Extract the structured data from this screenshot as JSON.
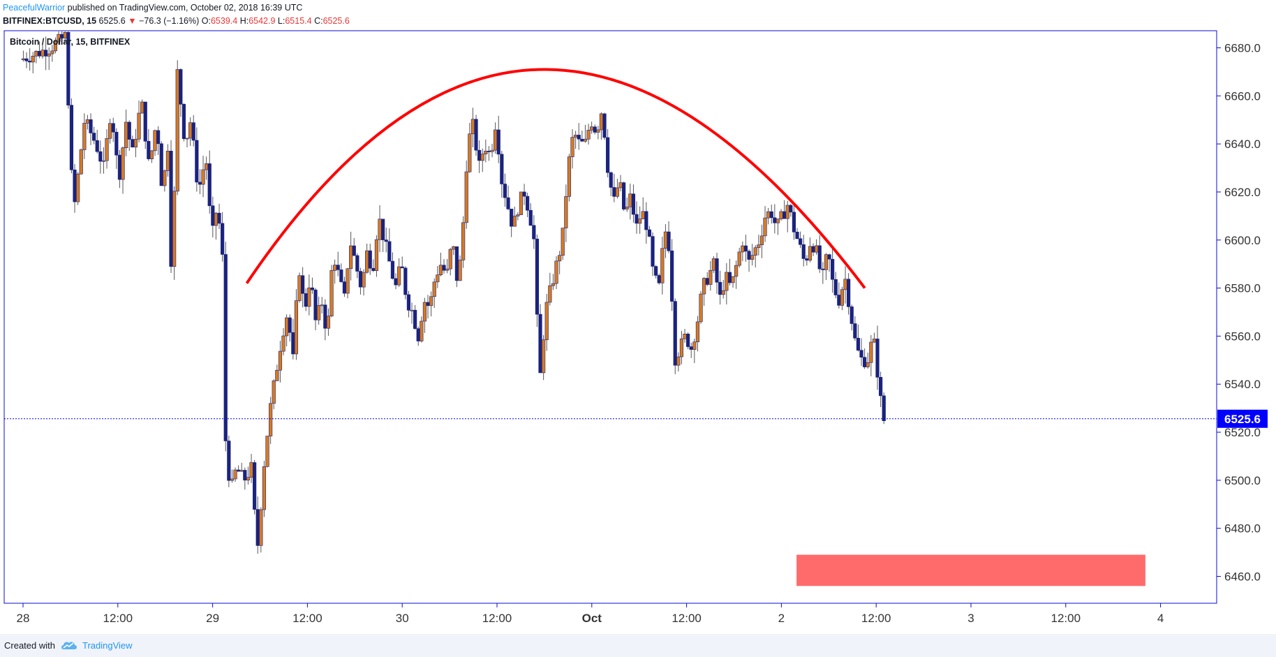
{
  "header": {
    "author": "PeacefulWarrior",
    "published_text": "published on TradingView.com, October 02, 2018 16:39 UTC",
    "symbol": "BITFINEX:BTCUSD, 15",
    "last": "6525.6",
    "arrow": "▼",
    "change": "−76.3 (−1.16%)",
    "o_label": "O:",
    "o_value": "6539.4",
    "h_label": "H:",
    "h_value": "6542.9",
    "l_label": "L:",
    "l_value": "6515.4",
    "c_label": "C:",
    "c_value": "6525.6"
  },
  "chart_data": {
    "type": "candlestick",
    "title": "Bitcoin / Dollar, 15, BITFINEX",
    "x_ticks": [
      "28",
      "12:00",
      "29",
      "12:00",
      "30",
      "12:00",
      "Oct",
      "12:00",
      "2",
      "12:00",
      "3",
      "12:00",
      "4"
    ],
    "y_ticks": [
      "6680.0",
      "6660.0",
      "6640.0",
      "6620.0",
      "6600.0",
      "6580.0",
      "6560.0",
      "6540.0",
      "6520.0",
      "6500.0",
      "6480.0",
      "6460.0"
    ],
    "ylim": [
      6450,
      6686
    ],
    "last_price": 6525.6,
    "last_price_label": "6525.6",
    "price_path": [
      [
        0.2,
        6675
      ],
      [
        1.8,
        6680
      ],
      [
        2.6,
        6685
      ],
      [
        3.0,
        6610
      ],
      [
        3.6,
        6650
      ],
      [
        4.2,
        6640
      ],
      [
        4.6,
        6630
      ],
      [
        5.0,
        6655
      ],
      [
        5.4,
        6625
      ],
      [
        5.8,
        6650
      ],
      [
        6.1,
        6635
      ],
      [
        6.6,
        6658
      ],
      [
        7.0,
        6630
      ],
      [
        7.4,
        6650
      ],
      [
        7.7,
        6620
      ],
      [
        8.0,
        6640
      ],
      [
        8.2,
        6580
      ],
      [
        8.5,
        6670
      ],
      [
        8.9,
        6640
      ],
      [
        9.2,
        6650
      ],
      [
        9.6,
        6620
      ],
      [
        10.0,
        6635
      ],
      [
        10.3,
        6600
      ],
      [
        10.6,
        6615
      ],
      [
        10.9,
        6590
      ],
      [
        11.0,
        6520
      ],
      [
        11.3,
        6495
      ],
      [
        11.6,
        6505
      ],
      [
        12.0,
        6500
      ],
      [
        12.4,
        6505
      ],
      [
        12.7,
        6470
      ],
      [
        12.9,
        6490
      ],
      [
        13.1,
        6510
      ],
      [
        13.4,
        6530
      ],
      [
        13.7,
        6545
      ],
      [
        14.0,
        6560
      ],
      [
        14.3,
        6570
      ],
      [
        14.6,
        6550
      ],
      [
        14.9,
        6590
      ],
      [
        15.2,
        6570
      ],
      [
        15.5,
        6585
      ],
      [
        15.8,
        6565
      ],
      [
        16.1,
        6575
      ],
      [
        16.4,
        6560
      ],
      [
        16.7,
        6595
      ],
      [
        17.0,
        6585
      ],
      [
        17.3,
        6575
      ],
      [
        17.6,
        6600
      ],
      [
        17.9,
        6590
      ],
      [
        18.2,
        6580
      ],
      [
        18.5,
        6595
      ],
      [
        18.8,
        6588
      ],
      [
        19.1,
        6610
      ],
      [
        19.4,
        6600
      ],
      [
        19.7,
        6590
      ],
      [
        20.0,
        6580
      ],
      [
        20.3,
        6590
      ],
      [
        20.6,
        6575
      ],
      [
        20.9,
        6570
      ],
      [
        21.2,
        6560
      ],
      [
        21.5,
        6575
      ],
      [
        21.8,
        6572
      ],
      [
        22.1,
        6585
      ],
      [
        22.4,
        6590
      ],
      [
        22.7,
        6585
      ],
      [
        23.0,
        6600
      ],
      [
        23.3,
        6580
      ],
      [
        23.6,
        6610
      ],
      [
        23.8,
        6640
      ],
      [
        24.1,
        6648
      ],
      [
        24.4,
        6630
      ],
      [
        24.7,
        6640
      ],
      [
        25.0,
        6635
      ],
      [
        25.3,
        6650
      ],
      [
        25.6,
        6625
      ],
      [
        25.9,
        6615
      ],
      [
        26.2,
        6605
      ],
      [
        26.5,
        6615
      ],
      [
        26.8,
        6620
      ],
      [
        27.1,
        6610
      ],
      [
        27.3,
        6600
      ],
      [
        27.6,
        6540
      ],
      [
        27.9,
        6570
      ],
      [
        28.2,
        6580
      ],
      [
        28.5,
        6590
      ],
      [
        28.8,
        6600
      ],
      [
        29.1,
        6630
      ],
      [
        29.4,
        6645
      ],
      [
        29.7,
        6640
      ],
      [
        30.0,
        6640
      ],
      [
        30.3,
        6650
      ],
      [
        30.6,
        6645
      ],
      [
        30.9,
        6655
      ],
      [
        31.2,
        6630
      ],
      [
        31.5,
        6615
      ],
      [
        31.8,
        6625
      ],
      [
        32.1,
        6610
      ],
      [
        32.4,
        6618
      ],
      [
        32.7,
        6605
      ],
      [
        33.0,
        6612
      ],
      [
        33.3,
        6605
      ],
      [
        33.6,
        6585
      ],
      [
        33.9,
        6580
      ],
      [
        34.2,
        6605
      ],
      [
        34.5,
        6595
      ],
      [
        34.7,
        6550
      ],
      [
        35.0,
        6555
      ],
      [
        35.3,
        6560
      ],
      [
        35.6,
        6555
      ],
      [
        35.9,
        6565
      ],
      [
        36.2,
        6580
      ],
      [
        36.5,
        6585
      ],
      [
        36.8,
        6590
      ],
      [
        37.1,
        6575
      ],
      [
        37.4,
        6585
      ],
      [
        37.7,
        6580
      ],
      [
        38.0,
        6590
      ],
      [
        38.3,
        6600
      ],
      [
        38.6,
        6590
      ],
      [
        38.9,
        6595
      ],
      [
        39.2,
        6600
      ],
      [
        39.5,
        6610
      ],
      [
        39.8,
        6612
      ],
      [
        40.1,
        6605
      ],
      [
        40.4,
        6610
      ],
      [
        40.7,
        6615
      ],
      [
        41.0,
        6605
      ],
      [
        41.3,
        6598
      ],
      [
        41.6,
        6590
      ],
      [
        41.9,
        6600
      ],
      [
        42.2,
        6595
      ],
      [
        42.5,
        6583
      ],
      [
        42.8,
        6595
      ],
      [
        43.1,
        6580
      ],
      [
        43.4,
        6575
      ],
      [
        43.7,
        6585
      ],
      [
        44.0,
        6570
      ],
      [
        44.3,
        6555
      ],
      [
        44.6,
        6550
      ],
      [
        44.9,
        6550
      ],
      [
        45.2,
        6560
      ],
      [
        45.5,
        6540
      ],
      [
        45.7,
        6525
      ]
    ],
    "annotations": [
      {
        "type": "arc",
        "color": "#ff0000",
        "from": [
          11.8,
          6582
        ],
        "apex": [
          27.6,
          6671
        ],
        "to": [
          44.4,
          6580
        ]
      },
      {
        "type": "rect",
        "color": "#ff6b6b",
        "x": [
          40.8,
          59.2
        ],
        "y": [
          6456,
          6469
        ]
      }
    ]
  },
  "footer": {
    "created_with": "Created with",
    "brand": "TradingView"
  },
  "colors": {
    "up": "#d77a1f",
    "down": "#1a237e",
    "axis": "#0b0bd0",
    "last_price_bg": "#0000ff",
    "footer_bg": "#f0f3fa"
  }
}
